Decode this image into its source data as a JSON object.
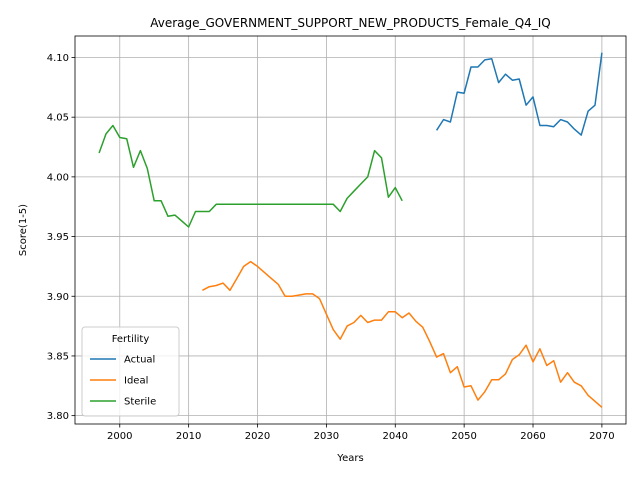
{
  "chart_data": {
    "type": "line",
    "title": "Average_GOVERNMENT_SUPPORT_NEW_PRODUCTS_Female_Q4_IQ",
    "xlabel": "Years",
    "ylabel": "Score(1-5)",
    "xlim": [
      1993.5,
      2073.5
    ],
    "ylim": [
      3.793,
      4.118
    ],
    "xticks": [
      2000,
      2010,
      2020,
      2030,
      2040,
      2050,
      2060,
      2070
    ],
    "yticks": [
      3.8,
      3.85,
      3.9,
      3.95,
      4.0,
      4.05,
      4.1
    ],
    "xtick_labels": [
      "2000",
      "2010",
      "2020",
      "2030",
      "2040",
      "2050",
      "2060",
      "2070"
    ],
    "ytick_labels": [
      "3.80",
      "3.85",
      "3.90",
      "3.95",
      "4.00",
      "4.05",
      "4.10"
    ],
    "grid": true,
    "legend": {
      "title": "Fertility",
      "position": "lower-left"
    },
    "series": [
      {
        "name": "Actual",
        "color": "#1f77b4",
        "x": [
          2046,
          2047,
          2048,
          2049,
          2050,
          2051,
          2052,
          2053,
          2054,
          2055,
          2056,
          2057,
          2058,
          2059,
          2060,
          2061,
          2062,
          2063,
          2064,
          2065,
          2066,
          2067,
          2068,
          2069,
          2070
        ],
        "y": [
          4.039,
          4.048,
          4.046,
          4.071,
          4.07,
          4.092,
          4.092,
          4.098,
          4.099,
          4.079,
          4.086,
          4.081,
          4.082,
          4.06,
          4.067,
          4.043,
          4.043,
          4.042,
          4.048,
          4.046,
          4.04,
          4.035,
          4.055,
          4.06,
          4.104
        ]
      },
      {
        "name": "Ideal",
        "color": "#ff7f0e",
        "x": [
          2012,
          2013,
          2014,
          2015,
          2016,
          2017,
          2018,
          2019,
          2020,
          2021,
          2022,
          2023,
          2024,
          2025,
          2026,
          2027,
          2028,
          2029,
          2030,
          2031,
          2032,
          2033,
          2034,
          2035,
          2036,
          2037,
          2038,
          2039,
          2040,
          2041,
          2042,
          2043,
          2044,
          2045,
          2046,
          2047,
          2048,
          2049,
          2050,
          2051,
          2052,
          2053,
          2054,
          2055,
          2056,
          2057,
          2058,
          2059,
          2060,
          2061,
          2062,
          2063,
          2064,
          2065,
          2066,
          2067,
          2068,
          2069,
          2070
        ],
        "y": [
          3.905,
          3.908,
          3.909,
          3.911,
          3.905,
          3.915,
          3.925,
          3.929,
          3.925,
          3.92,
          3.915,
          3.91,
          3.9,
          3.9,
          3.901,
          3.902,
          3.902,
          3.898,
          3.885,
          3.872,
          3.864,
          3.875,
          3.878,
          3.884,
          3.878,
          3.88,
          3.88,
          3.887,
          3.887,
          3.882,
          3.886,
          3.879,
          3.874,
          3.862,
          3.849,
          3.852,
          3.836,
          3.841,
          3.824,
          3.825,
          3.813,
          3.82,
          3.83,
          3.83,
          3.835,
          3.847,
          3.851,
          3.859,
          3.845,
          3.856,
          3.842,
          3.846,
          3.828,
          3.836,
          3.828,
          3.825,
          3.817,
          3.812,
          3.807
        ]
      },
      {
        "name": "Sterile",
        "color": "#2ca02c",
        "x": [
          1997,
          1998,
          1999,
          2000,
          2001,
          2002,
          2003,
          2004,
          2005,
          2006,
          2007,
          2008,
          2009,
          2010,
          2011,
          2012,
          2013,
          2014,
          2015,
          2016,
          2017,
          2018,
          2019,
          2020,
          2021,
          2022,
          2023,
          2024,
          2025,
          2026,
          2027,
          2028,
          2029,
          2030,
          2031,
          2032,
          2033,
          2034,
          2035,
          2036,
          2037,
          2038,
          2039,
          2040,
          2041
        ],
        "y": [
          4.02,
          4.036,
          4.043,
          4.033,
          4.032,
          4.008,
          4.022,
          4.007,
          3.98,
          3.98,
          3.967,
          3.968,
          3.963,
          3.958,
          3.971,
          3.971,
          3.971,
          3.977,
          3.977,
          3.977,
          3.977,
          3.977,
          3.977,
          3.977,
          3.977,
          3.977,
          3.977,
          3.977,
          3.977,
          3.977,
          3.977,
          3.977,
          3.977,
          3.977,
          3.977,
          3.971,
          3.982,
          3.988,
          3.994,
          4.0,
          4.022,
          4.016,
          3.983,
          3.991,
          3.98
        ]
      }
    ]
  }
}
